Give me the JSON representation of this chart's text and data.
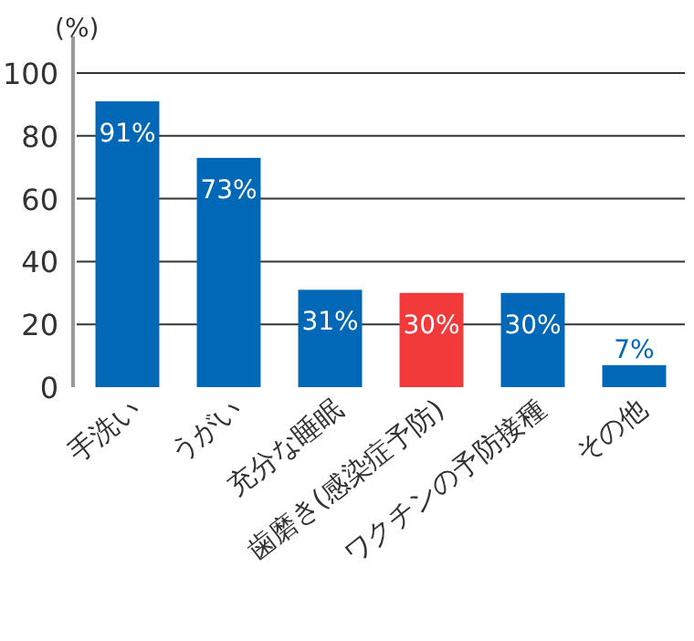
{
  "chart_data": {
    "type": "bar",
    "ylabel": "(%)",
    "categories": [
      "手洗い",
      "うがい",
      "充分な睡眠",
      "歯磨き(感染症予防)",
      "ワクチンの予防接種",
      "その他"
    ],
    "values": [
      91,
      73,
      31,
      30,
      30,
      7
    ],
    "value_labels": [
      "91%",
      "73%",
      "31%",
      "30%",
      "30%",
      "7%"
    ],
    "colors": [
      "#0068b7",
      "#0068b7",
      "#0068b7",
      "#f33a3a",
      "#0068b7",
      "#0068b7"
    ],
    "ylim": [
      0,
      100
    ],
    "yticks": [
      0,
      20,
      40,
      60,
      80,
      100
    ],
    "grid": "y"
  }
}
